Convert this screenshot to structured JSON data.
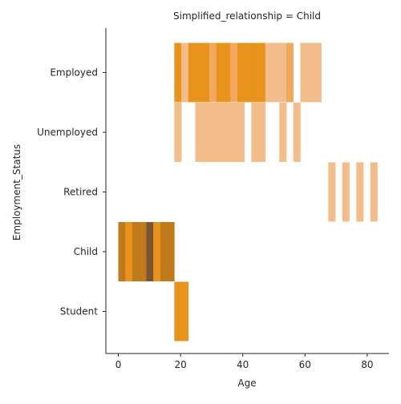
{
  "chart_data": {
    "type": "heatmap",
    "title": "Simplified_relationship = Child",
    "xlabel": "Age",
    "ylabel": "Employment_Status",
    "categories": [
      "Employed",
      "Unemployed",
      "Retired",
      "Child",
      "Student"
    ],
    "xlim": [
      -4,
      87
    ],
    "xticks": [
      0,
      20,
      40,
      60,
      80
    ],
    "bin_width": 2.25,
    "colors": {
      "light": "#f2bd8b",
      "mid": "#f0a95f",
      "strong": "#e8931c",
      "dark": "#bf7a1b",
      "darkest": "#7a5532",
      "axis": "#262626"
    },
    "series": [
      {
        "category": "Employed",
        "cells": [
          {
            "start": 18.0,
            "shade": "strong"
          },
          {
            "start": 20.25,
            "shade": "light"
          },
          {
            "start": 22.5,
            "shade": "strong"
          },
          {
            "start": 24.75,
            "shade": "strong"
          },
          {
            "start": 27.0,
            "shade": "strong"
          },
          {
            "start": 29.25,
            "shade": "mid"
          },
          {
            "start": 31.5,
            "shade": "strong"
          },
          {
            "start": 33.75,
            "shade": "strong"
          },
          {
            "start": 36.0,
            "shade": "mid"
          },
          {
            "start": 38.25,
            "shade": "strong"
          },
          {
            "start": 40.5,
            "shade": "strong"
          },
          {
            "start": 42.75,
            "shade": "strong"
          },
          {
            "start": 45.0,
            "shade": "strong"
          },
          {
            "start": 47.25,
            "shade": "light"
          },
          {
            "start": 49.5,
            "shade": "light"
          },
          {
            "start": 51.75,
            "shade": "light"
          },
          {
            "start": 54.0,
            "shade": "mid"
          },
          {
            "start": 58.5,
            "shade": "light"
          },
          {
            "start": 60.75,
            "shade": "light"
          },
          {
            "start": 63.0,
            "shade": "light"
          }
        ]
      },
      {
        "category": "Unemployed",
        "cells": [
          {
            "start": 18.0,
            "shade": "light"
          },
          {
            "start": 24.75,
            "shade": "light"
          },
          {
            "start": 27.0,
            "shade": "light"
          },
          {
            "start": 29.25,
            "shade": "light"
          },
          {
            "start": 31.5,
            "shade": "light"
          },
          {
            "start": 33.75,
            "shade": "light"
          },
          {
            "start": 36.0,
            "shade": "light"
          },
          {
            "start": 38.25,
            "shade": "light"
          },
          {
            "start": 42.75,
            "shade": "light"
          },
          {
            "start": 45.0,
            "shade": "light"
          },
          {
            "start": 51.75,
            "shade": "light"
          },
          {
            "start": 56.25,
            "shade": "light"
          }
        ]
      },
      {
        "category": "Retired",
        "cells": [
          {
            "start": 67.5,
            "shade": "light"
          },
          {
            "start": 72.0,
            "shade": "light"
          },
          {
            "start": 76.5,
            "shade": "light"
          },
          {
            "start": 81.0,
            "shade": "light"
          }
        ]
      },
      {
        "category": "Child",
        "cells": [
          {
            "start": 0.0,
            "shade": "dark"
          },
          {
            "start": 2.25,
            "shade": "strong"
          },
          {
            "start": 4.5,
            "shade": "dark"
          },
          {
            "start": 6.75,
            "shade": "dark"
          },
          {
            "start": 9.0,
            "shade": "darkest"
          },
          {
            "start": 11.25,
            "shade": "strong"
          },
          {
            "start": 13.5,
            "shade": "dark"
          },
          {
            "start": 15.75,
            "shade": "dark"
          }
        ]
      },
      {
        "category": "Student",
        "cells": [
          {
            "start": 18.0,
            "shade": "strong"
          },
          {
            "start": 20.25,
            "shade": "strong"
          }
        ]
      }
    ]
  }
}
